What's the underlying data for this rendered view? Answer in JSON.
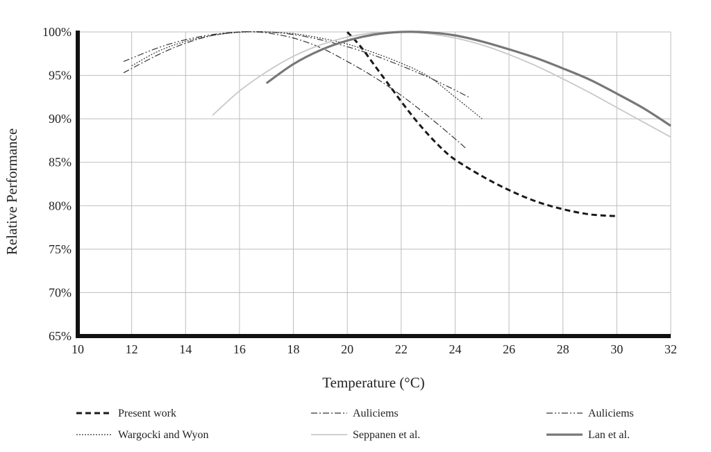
{
  "chart_data": {
    "type": "line",
    "title": "",
    "xlabel": "Temperature (°C)",
    "ylabel": "Relative Performance",
    "xlim": [
      10,
      32
    ],
    "ylim": [
      65,
      100
    ],
    "grid": true,
    "legend_position": "bottom",
    "x_ticks": [
      "10",
      "12",
      "14",
      "16",
      "18",
      "20",
      "22",
      "24",
      "26",
      "28",
      "30",
      "32"
    ],
    "y_ticks": [
      "65%",
      "70%",
      "75%",
      "80%",
      "85%",
      "90%",
      "95%",
      "100%"
    ],
    "series": [
      {
        "name": "Present work",
        "style": "bold-dash",
        "color": "#1a1a1a",
        "x": [
          20,
          20.5,
          21,
          21.5,
          22,
          22.5,
          23,
          23.5,
          24,
          25,
          26,
          27,
          28,
          29,
          30
        ],
        "y": [
          100,
          98.3,
          96.2,
          94.1,
          92.0,
          90.0,
          88.2,
          86.6,
          85.3,
          83.4,
          81.8,
          80.5,
          79.6,
          79.0,
          78.8
        ]
      },
      {
        "name": "Auliciems",
        "style": "dash-dot",
        "color": "#333333",
        "x": [
          11.7,
          13,
          14,
          15,
          16,
          16.5,
          17,
          18,
          19,
          20,
          21,
          22,
          23,
          24,
          24.4
        ],
        "y": [
          95.3,
          97.4,
          98.7,
          99.6,
          100,
          100,
          99.9,
          99.3,
          98.2,
          96.6,
          94.8,
          92.7,
          90.3,
          87.7,
          86.6
        ]
      },
      {
        "name": "Auliciems",
        "style": "dash-dot-dot",
        "color": "#333333",
        "x": [
          11.7,
          13,
          14,
          15,
          16,
          17,
          18,
          19,
          20,
          21,
          22,
          23,
          24,
          24.5
        ],
        "y": [
          96.6,
          98.2,
          99.1,
          99.7,
          100,
          100,
          99.7,
          99.1,
          98.3,
          97.3,
          96.1,
          94.8,
          93.3,
          92.5
        ]
      },
      {
        "name": "Wargocki and Wyon",
        "style": "dotted",
        "color": "#333333",
        "x": [
          12,
          13,
          14,
          15,
          16,
          17,
          18,
          19,
          20,
          21,
          22,
          23,
          24,
          25
        ],
        "y": [
          96.1,
          97.8,
          98.9,
          99.6,
          99.95,
          100,
          99.8,
          99.3,
          98.6,
          97.6,
          96.4,
          94.9,
          92.5,
          90.0
        ]
      },
      {
        "name": "Seppanen et al.",
        "style": "solid-light",
        "color": "#c8c8c8",
        "x": [
          15,
          16,
          17,
          18,
          19,
          20,
          21,
          22,
          23,
          24,
          25,
          26,
          27,
          28,
          29,
          30,
          31,
          32
        ],
        "y": [
          90.4,
          93.2,
          95.4,
          97.2,
          98.5,
          99.4,
          99.9,
          100,
          99.8,
          99.3,
          98.5,
          97.4,
          96.1,
          94.6,
          93.0,
          91.3,
          89.6,
          87.9
        ]
      },
      {
        "name": "Lan et al.",
        "style": "solid-thick",
        "color": "#777777",
        "x": [
          17,
          18,
          19,
          20,
          21,
          22,
          23,
          24,
          25,
          26,
          27,
          28,
          29,
          30,
          31,
          32
        ],
        "y": [
          94.1,
          96.3,
          97.9,
          99.0,
          99.7,
          100,
          99.95,
          99.6,
          98.9,
          98.0,
          97.0,
          95.8,
          94.5,
          92.9,
          91.2,
          89.2
        ]
      }
    ]
  }
}
